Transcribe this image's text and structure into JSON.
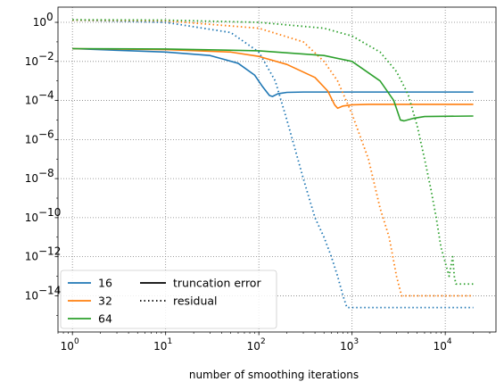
{
  "chart_data": {
    "type": "line",
    "title": "",
    "xlabel": "number of smoothing iterations",
    "ylabel": "",
    "xscale": "log",
    "yscale": "log",
    "xlim": [
      0.7,
      35000
    ],
    "ylim": [
      1.4e-16,
      6
    ],
    "grid": true,
    "grid_style": "dotted",
    "x_ticks": [
      {
        "value": 1,
        "base": "10",
        "exp": "0"
      },
      {
        "value": 10,
        "base": "10",
        "exp": "1"
      },
      {
        "value": 100,
        "base": "10",
        "exp": "2"
      },
      {
        "value": 1000,
        "base": "10",
        "exp": "3"
      },
      {
        "value": 10000,
        "base": "10",
        "exp": "4"
      }
    ],
    "y_ticks": [
      {
        "value": 1,
        "base": "10",
        "exp": "0"
      },
      {
        "value": 0.01,
        "base": "10",
        "exp": "−2"
      },
      {
        "value": 0.0001,
        "base": "10",
        "exp": "−4"
      },
      {
        "value": 1e-06,
        "base": "10",
        "exp": "−6"
      },
      {
        "value": 1e-08,
        "base": "10",
        "exp": "−8"
      },
      {
        "value": 1e-10,
        "base": "10",
        "exp": "−10"
      },
      {
        "value": 1e-12,
        "base": "10",
        "exp": "−12"
      },
      {
        "value": 1e-14,
        "base": "10",
        "exp": "−14"
      }
    ],
    "legend": {
      "placement": "lower-left",
      "color_entries": [
        {
          "label": "16",
          "color": "#1f77b4"
        },
        {
          "label": "32",
          "color": "#ff7f0e"
        },
        {
          "label": "64",
          "color": "#2ca02c"
        }
      ],
      "style_entries": [
        {
          "label": "truncation error",
          "style": "solid"
        },
        {
          "label": "residual",
          "style": "dotted"
        }
      ]
    },
    "series": [
      {
        "group": "16",
        "kind": "truncation error",
        "color": "#1f77b4",
        "style": "solid",
        "points": [
          [
            1,
            0.045
          ],
          [
            10,
            0.03
          ],
          [
            30,
            0.02
          ],
          [
            60,
            0.008
          ],
          [
            90,
            0.002
          ],
          [
            110,
            0.0005
          ],
          [
            130,
            0.00018
          ],
          [
            140,
            0.00016
          ],
          [
            160,
            0.00022
          ],
          [
            200,
            0.00026
          ],
          [
            300,
            0.00027
          ],
          [
            20000,
            0.00027
          ]
        ]
      },
      {
        "group": "16",
        "kind": "residual",
        "color": "#1f77b4",
        "style": "dotted",
        "points": [
          [
            1,
            1.3
          ],
          [
            10,
            1.0
          ],
          [
            50,
            0.3
          ],
          [
            100,
            0.03
          ],
          [
            150,
            0.001
          ],
          [
            200,
            1e-05
          ],
          [
            300,
            1e-08
          ],
          [
            400,
            1e-10
          ],
          [
            500,
            1e-11
          ],
          [
            600,
            1e-12
          ],
          [
            700,
            1e-13
          ],
          [
            800,
            1e-14
          ],
          [
            880,
            2.5e-15
          ],
          [
            890,
            2.5e-15
          ],
          [
            20000,
            2.5e-15
          ]
        ]
      },
      {
        "group": "32",
        "kind": "truncation error",
        "color": "#ff7f0e",
        "style": "solid",
        "points": [
          [
            1,
            0.045
          ],
          [
            10,
            0.04
          ],
          [
            50,
            0.03
          ],
          [
            100,
            0.018
          ],
          [
            200,
            0.007
          ],
          [
            400,
            0.0015
          ],
          [
            550,
            0.0003
          ],
          [
            650,
            6e-05
          ],
          [
            700,
            4e-05
          ],
          [
            800,
            5.2e-05
          ],
          [
            1000,
            6e-05
          ],
          [
            1500,
            6.3e-05
          ],
          [
            20000,
            6.3e-05
          ]
        ]
      },
      {
        "group": "32",
        "kind": "residual",
        "color": "#ff7f0e",
        "style": "dotted",
        "points": [
          [
            1,
            1.3
          ],
          [
            10,
            1.2
          ],
          [
            100,
            0.5
          ],
          [
            300,
            0.1
          ],
          [
            500,
            0.01
          ],
          [
            700,
            0.001
          ],
          [
            1000,
            2e-05
          ],
          [
            1500,
            1e-07
          ],
          [
            2000,
            3e-10
          ],
          [
            2500,
            1e-11
          ],
          [
            3000,
            1e-13
          ],
          [
            3400,
            1e-14
          ],
          [
            3500,
            1e-14
          ],
          [
            20000,
            1e-14
          ]
        ]
      },
      {
        "group": "64",
        "kind": "truncation error",
        "color": "#2ca02c",
        "style": "solid",
        "points": [
          [
            1,
            0.045
          ],
          [
            10,
            0.043
          ],
          [
            100,
            0.035
          ],
          [
            500,
            0.02
          ],
          [
            1000,
            0.01
          ],
          [
            2000,
            0.001
          ],
          [
            2800,
            0.0001
          ],
          [
            3300,
            1e-05
          ],
          [
            3600,
            9e-06
          ],
          [
            4500,
            1.2e-05
          ],
          [
            6000,
            1.5e-05
          ],
          [
            20000,
            1.6e-05
          ]
        ]
      },
      {
        "group": "64",
        "kind": "residual",
        "color": "#2ca02c",
        "style": "dotted",
        "points": [
          [
            1,
            1.35
          ],
          [
            10,
            1.3
          ],
          [
            100,
            1.0
          ],
          [
            500,
            0.5
          ],
          [
            1000,
            0.2
          ],
          [
            2000,
            0.03
          ],
          [
            3000,
            0.003
          ],
          [
            4000,
            0.0002
          ],
          [
            5000,
            5e-06
          ],
          [
            6000,
            1e-07
          ],
          [
            7000,
            3e-09
          ],
          [
            8000,
            1e-10
          ],
          [
            9000,
            3e-12
          ],
          [
            10000,
            5e-13
          ],
          [
            11000,
            1e-13
          ],
          [
            12000,
            1e-12
          ],
          [
            12500,
            1e-13
          ],
          [
            13000,
            4e-14
          ],
          [
            20000,
            4e-14
          ]
        ]
      }
    ]
  }
}
